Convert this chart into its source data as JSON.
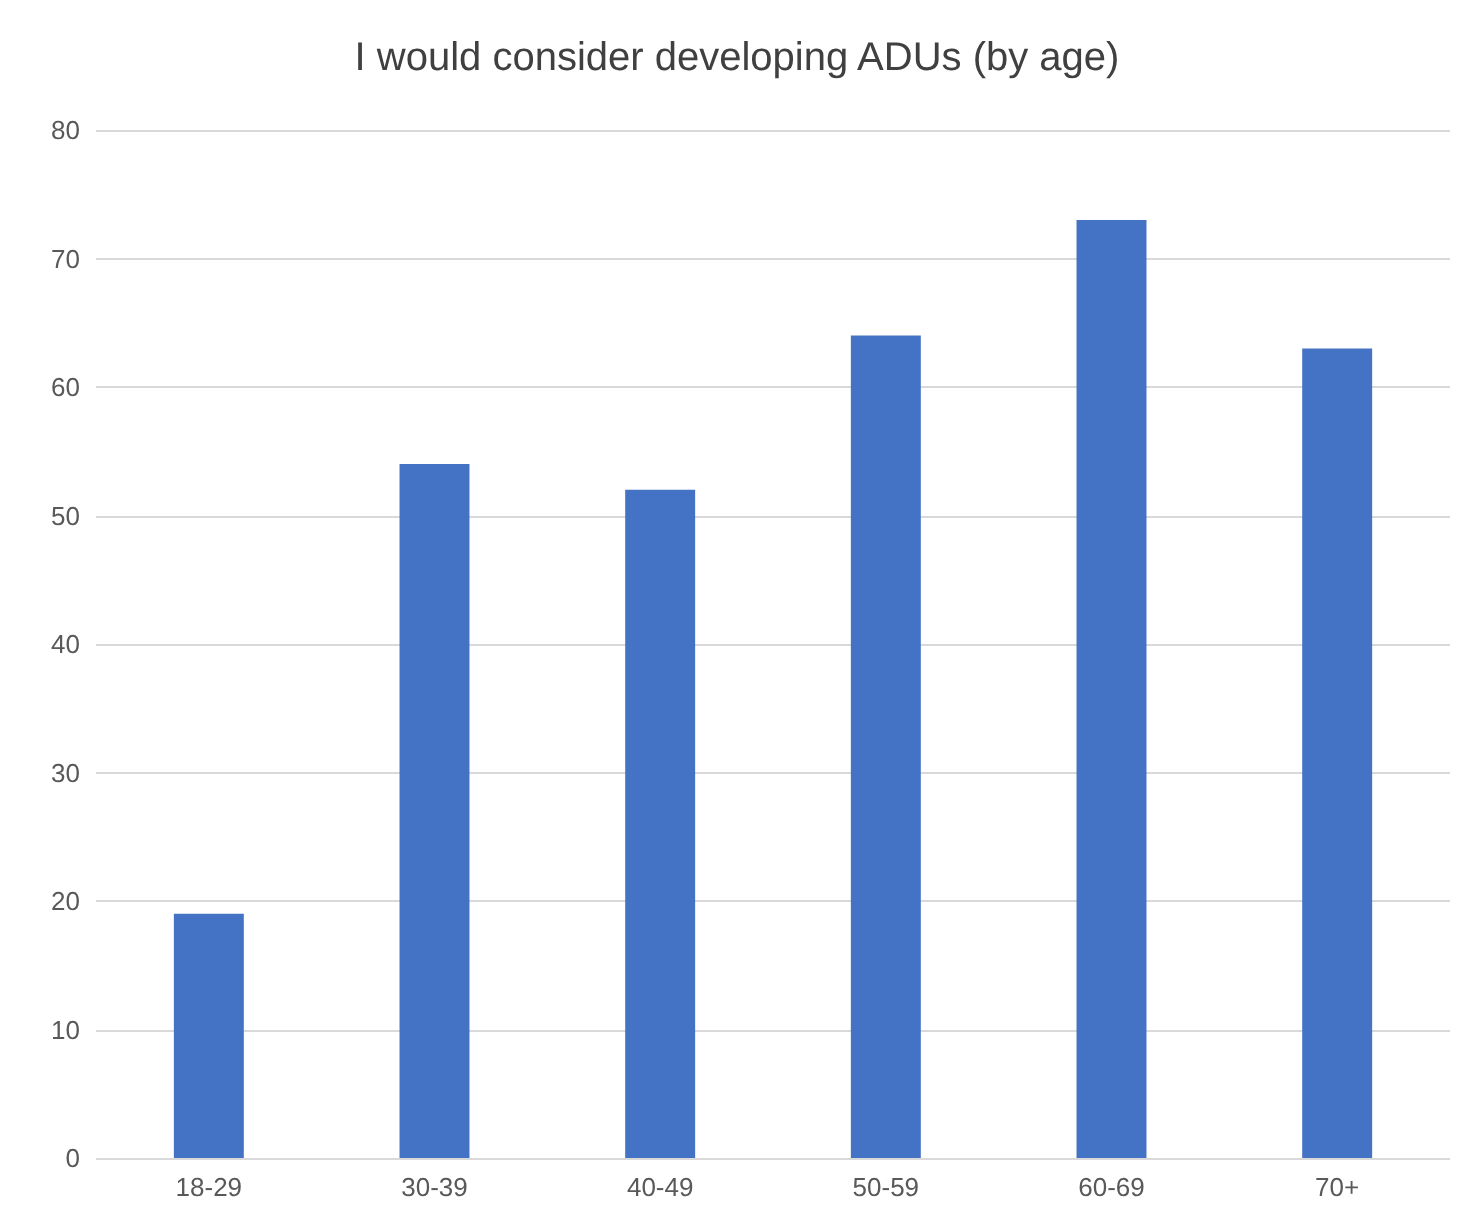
{
  "chart_data": {
    "type": "bar",
    "title": "I would consider developing ADUs (by age)",
    "categories": [
      "18-29",
      "30-39",
      "40-49",
      "50-59",
      "60-69",
      "70+"
    ],
    "values": [
      19,
      54,
      52,
      64,
      73,
      63
    ],
    "color": "#4472c4",
    "ylim": [
      0,
      80
    ],
    "yticks": [
      0,
      10,
      20,
      30,
      40,
      50,
      60,
      70,
      80
    ],
    "grid": "y"
  }
}
